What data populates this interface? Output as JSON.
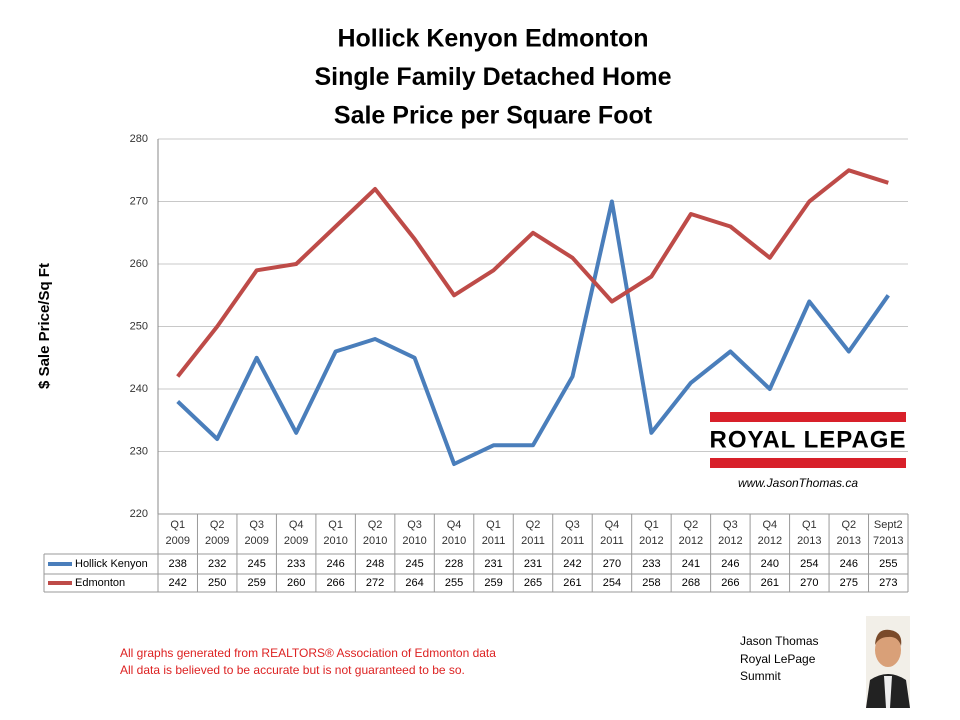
{
  "chart_data": {
    "type": "line",
    "title": [
      "Hollick Kenyon Edmonton",
      "Single Family Detached Home",
      "Sale Price per Square Foot"
    ],
    "y_label": "$ Sale Price/Sq Ft",
    "categories": [
      [
        "Q1",
        "2009"
      ],
      [
        "Q2",
        "2009"
      ],
      [
        "Q3",
        "2009"
      ],
      [
        "Q4",
        "2009"
      ],
      [
        "Q1",
        "2010"
      ],
      [
        "Q2",
        "2010"
      ],
      [
        "Q3",
        "2010"
      ],
      [
        "Q4",
        "2010"
      ],
      [
        "Q1",
        "2011"
      ],
      [
        "Q2",
        "2011"
      ],
      [
        "Q3",
        "2011"
      ],
      [
        "Q4",
        "2011"
      ],
      [
        "Q1",
        "2012"
      ],
      [
        "Q2",
        "2012"
      ],
      [
        "Q3",
        "2012"
      ],
      [
        "Q4",
        "2012"
      ],
      [
        "Q1",
        "2013"
      ],
      [
        "Q2",
        "2013"
      ],
      [
        "Sept2",
        "72013"
      ]
    ],
    "series": [
      {
        "name": "Hollick Kenyon",
        "color": "#4a7ebb",
        "values": [
          238,
          232,
          245,
          233,
          246,
          248,
          245,
          228,
          231,
          231,
          242,
          270,
          233,
          241,
          246,
          240,
          254,
          246,
          255
        ]
      },
      {
        "name": "Edmonton",
        "color": "#be4b48",
        "values": [
          242,
          250,
          259,
          260,
          266,
          272,
          264,
          255,
          259,
          265,
          261,
          254,
          258,
          268,
          266,
          261,
          270,
          275,
          273
        ]
      }
    ],
    "ylim": [
      220,
      280
    ],
    "yticks": [
      220,
      230,
      240,
      250,
      260,
      270,
      280
    ],
    "grid": true
  },
  "logo": {
    "name": "ROYAL LEPAGE",
    "url": "www.JasonThomas.ca"
  },
  "footer": {
    "notes": [
      "All graphs generated from REALTORS® Association of Edmonton data",
      "All data is believed to be accurate but is not guaranteed to be so."
    ],
    "author": [
      "Jason Thomas",
      "Royal LePage",
      "Summit"
    ]
  }
}
